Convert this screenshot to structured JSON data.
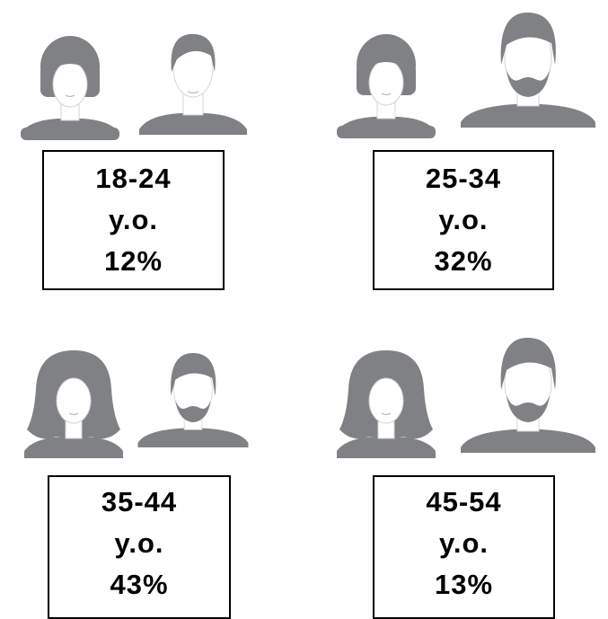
{
  "groups": [
    {
      "age": "18-24",
      "unit": "y.o.",
      "share": "12%"
    },
    {
      "age": "25-34",
      "unit": "y.o.",
      "share": "32%"
    },
    {
      "age": "35-44",
      "unit": "y.o.",
      "share": "43%"
    },
    {
      "age": "45-54",
      "unit": "y.o.",
      "share": "13%"
    }
  ]
}
